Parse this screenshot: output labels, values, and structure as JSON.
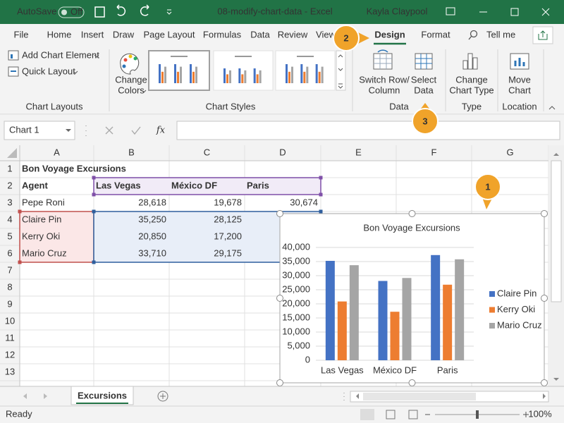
{
  "title_bar": {
    "autosave": "AutoSave",
    "autosave_state": "Off",
    "document": "08-modify-chart-data  -  Excel",
    "user": "Kayla Claypool"
  },
  "tabs": [
    "File",
    "Home",
    "Insert",
    "Draw",
    "Page Layout",
    "Formulas",
    "Data",
    "Review",
    "View",
    "Design",
    "Format"
  ],
  "tell_me": "Tell me",
  "ribbon": {
    "chart_layouts": {
      "add_chart_element": "Add Chart Element",
      "quick_layout": "Quick Layout",
      "label": "Chart Layouts"
    },
    "chart_styles": {
      "change_colors": [
        "Change",
        "Colors"
      ],
      "label": "Chart Styles"
    },
    "data": {
      "switch_row_column": [
        "Switch Row/",
        "Column"
      ],
      "select_data": [
        "Select",
        "Data"
      ],
      "label": "Data"
    },
    "type": {
      "change_chart_type": [
        "Change",
        "Chart Type"
      ],
      "label": "Type"
    },
    "location": {
      "move_chart": [
        "Move",
        "Chart"
      ],
      "label": "Location"
    }
  },
  "formula_bar": {
    "name_box": "Chart 1",
    "fx": "fx"
  },
  "sheet": {
    "columns": [
      "A",
      "B",
      "C",
      "D",
      "E",
      "F",
      "G"
    ],
    "row_numbers": [
      1,
      2,
      3,
      4,
      5,
      6,
      7,
      8,
      9,
      10,
      11,
      12,
      13
    ],
    "rows": [
      [
        "Bon Voyage Excursions"
      ],
      [
        "Agent",
        "Las Vegas",
        "México DF",
        "Paris"
      ],
      [
        "Pepe Roni",
        "28,618",
        "19,678",
        "30,674"
      ],
      [
        "Claire Pin",
        "35,250",
        "28,125"
      ],
      [
        "Kerry Oki",
        "20,850",
        "17,200"
      ],
      [
        "Mario Cruz",
        "33,710",
        "29,175"
      ]
    ]
  },
  "chart_data": {
    "type": "bar",
    "title": "Bon Voyage Excursions",
    "categories": [
      "Las Vegas",
      "México DF",
      "Paris"
    ],
    "series": [
      {
        "name": "Claire Pin",
        "color": "#4472c4",
        "values": [
          35250,
          28125,
          37300
        ]
      },
      {
        "name": "Kerry Oki",
        "color": "#ed7d31",
        "values": [
          20850,
          17200,
          26800
        ]
      },
      {
        "name": "Mario Cruz",
        "color": "#a5a5a5",
        "values": [
          33710,
          29175,
          35800
        ]
      }
    ],
    "ylim": [
      0,
      40000
    ],
    "yticks": [
      0,
      {
        "value": 5000,
        "label": "5,000"
      },
      {
        "value": 10000,
        "label": "10,000"
      },
      {
        "value": 15000,
        "label": "15,000"
      },
      {
        "value": 20000,
        "label": "20,000"
      },
      {
        "value": 25000,
        "label": "25,000"
      },
      {
        "value": 30000,
        "label": "30,000"
      },
      {
        "value": 35000,
        "label": "35,000"
      },
      {
        "value": 40000,
        "label": "40,000"
      }
    ],
    "grid": true,
    "legend": "right"
  },
  "callouts": [
    "1",
    "2",
    "3"
  ],
  "sheet_tab": "Excursions",
  "status_bar": {
    "status": "Ready",
    "zoom": "100%"
  }
}
